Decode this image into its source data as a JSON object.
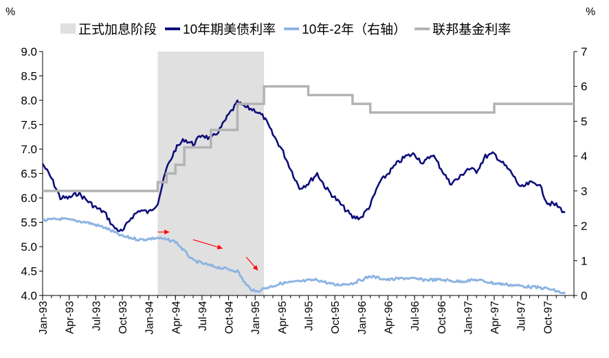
{
  "chart_data": {
    "type": "line",
    "left_unit": "%",
    "right_unit": "%",
    "colors": {
      "ten_year": "#0d0d7a",
      "spread": "#8db4e2",
      "fed": "#b3b3b3",
      "shade": "#e0e0e0",
      "arrow": "#ff0000"
    },
    "legend": [
      {
        "key": "shade",
        "label": "正式加息阶段"
      },
      {
        "key": "ten_year",
        "label": "10年期美债利率"
      },
      {
        "key": "spread",
        "label": "10年-2年（右轴）"
      },
      {
        "key": "fed",
        "label": "联邦基金利率"
      }
    ],
    "y_left": {
      "min": 4.0,
      "max": 9.0,
      "ticks": [
        "4.0",
        "4.5",
        "5.0",
        "5.5",
        "6.0",
        "6.5",
        "7.0",
        "7.5",
        "8.0",
        "8.5",
        "9.0"
      ]
    },
    "y_right": {
      "min": 0,
      "max": 7,
      "ticks": [
        "0",
        "1",
        "2",
        "3",
        "4",
        "5",
        "6",
        "7"
      ]
    },
    "x_axis": {
      "start": "1993-01",
      "end": "1997-12",
      "tick_labels": [
        "Jan-93",
        "Apr-93",
        "Jul-93",
        "Oct-93",
        "Jan-94",
        "Apr-94",
        "Jul-94",
        "Oct-94",
        "Jan-95",
        "Apr-95",
        "Jul-95",
        "Oct-95",
        "Jan-96",
        "Apr-96",
        "Jul-96",
        "Oct-96",
        "Jan-97",
        "Apr-97",
        "Jul-97",
        "Oct-97"
      ],
      "tick_dates": [
        "1993-01",
        "1993-04",
        "1993-07",
        "1993-10",
        "1994-01",
        "1994-04",
        "1994-07",
        "1994-10",
        "1995-01",
        "1995-04",
        "1995-07",
        "1995-10",
        "1996-01",
        "1996-04",
        "1996-07",
        "1996-10",
        "1997-01",
        "1997-04",
        "1997-07",
        "1997-10"
      ]
    },
    "shaded_period": {
      "start": "1994-02",
      "end": "1995-02"
    },
    "series": [
      {
        "key": "ten_year",
        "name": "10年期美债利率",
        "axis": "left",
        "x": [
          "1993-01",
          "1993-02",
          "1993-03",
          "1993-04",
          "1993-05",
          "1993-06",
          "1993-07",
          "1993-08",
          "1993-09",
          "1993-10",
          "1993-11",
          "1993-12",
          "1994-01",
          "1994-02",
          "1994-03",
          "1994-04",
          "1994-05",
          "1994-06",
          "1994-07",
          "1994-08",
          "1994-09",
          "1994-10",
          "1994-11",
          "1994-12",
          "1995-01",
          "1995-02",
          "1995-03",
          "1995-04",
          "1995-05",
          "1995-06",
          "1995-07",
          "1995-08",
          "1995-09",
          "1995-10",
          "1995-11",
          "1995-12",
          "1996-01",
          "1996-02",
          "1996-03",
          "1996-04",
          "1996-05",
          "1996-06",
          "1996-07",
          "1996-08",
          "1996-09",
          "1996-10",
          "1996-11",
          "1996-12",
          "1997-01",
          "1997-02",
          "1997-03",
          "1997-04",
          "1997-05",
          "1997-06",
          "1997-07",
          "1997-08",
          "1997-09",
          "1997-10",
          "1997-11",
          "1997-12"
        ],
        "values": [
          6.7,
          6.4,
          6.0,
          6.0,
          6.1,
          5.95,
          5.8,
          5.7,
          5.4,
          5.3,
          5.6,
          5.75,
          5.7,
          5.9,
          6.6,
          7.0,
          7.2,
          7.1,
          7.3,
          7.2,
          7.4,
          7.7,
          7.95,
          7.85,
          7.8,
          7.65,
          7.3,
          7.0,
          6.6,
          6.2,
          6.3,
          6.5,
          6.2,
          6.0,
          5.8,
          5.6,
          5.6,
          5.85,
          6.3,
          6.5,
          6.7,
          6.85,
          6.9,
          6.7,
          6.9,
          6.6,
          6.3,
          6.4,
          6.6,
          6.55,
          6.85,
          6.9,
          6.7,
          6.5,
          6.2,
          6.3,
          6.3,
          5.9,
          5.85,
          5.7
        ]
      },
      {
        "key": "spread",
        "name": "10年-2年（右轴）",
        "axis": "right",
        "x": [
          "1993-01",
          "1993-03",
          "1993-06",
          "1993-08",
          "1993-10",
          "1993-12",
          "1994-02",
          "1994-04",
          "1994-06",
          "1994-08",
          "1994-10",
          "1994-11",
          "1994-12",
          "1995-01",
          "1995-02",
          "1995-04",
          "1995-06",
          "1995-08",
          "1995-10",
          "1995-12",
          "1996-02",
          "1996-04",
          "1996-06",
          "1996-08",
          "1996-10",
          "1996-12",
          "1997-02",
          "1997-04",
          "1997-06",
          "1997-08",
          "1997-10",
          "1997-12"
        ],
        "values": [
          2.15,
          2.2,
          2.1,
          1.95,
          1.7,
          1.6,
          1.65,
          1.55,
          1.0,
          0.85,
          0.75,
          0.7,
          0.3,
          0.1,
          0.2,
          0.35,
          0.4,
          0.45,
          0.3,
          0.35,
          0.55,
          0.45,
          0.5,
          0.45,
          0.45,
          0.4,
          0.45,
          0.35,
          0.3,
          0.25,
          0.2,
          0.05
        ]
      },
      {
        "key": "fed",
        "name": "联邦基金利率",
        "axis": "right",
        "steps": [
          [
            "1993-01",
            3.0
          ],
          [
            "1994-02",
            3.25
          ],
          [
            "1994-03",
            3.5
          ],
          [
            "1994-04",
            3.75
          ],
          [
            "1994-05",
            4.25
          ],
          [
            "1994-08",
            4.75
          ],
          [
            "1994-11",
            5.5
          ],
          [
            "1995-02",
            6.0
          ],
          [
            "1995-07",
            5.75
          ],
          [
            "1995-12",
            5.5
          ],
          [
            "1996-02",
            5.25
          ],
          [
            "1997-04",
            5.5
          ],
          [
            "1997-12",
            5.5
          ]
        ]
      }
    ]
  }
}
